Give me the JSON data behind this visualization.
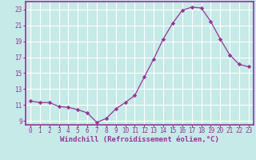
{
  "x": [
    0,
    1,
    2,
    3,
    4,
    5,
    6,
    7,
    8,
    9,
    10,
    11,
    12,
    13,
    14,
    15,
    16,
    17,
    18,
    19,
    20,
    21,
    22,
    23
  ],
  "y": [
    11.5,
    11.3,
    11.3,
    10.8,
    10.7,
    10.4,
    10.0,
    8.8,
    9.3,
    10.5,
    11.3,
    12.2,
    14.5,
    16.8,
    19.3,
    21.3,
    22.9,
    23.3,
    23.2,
    21.5,
    19.3,
    17.3,
    16.1,
    15.8
  ],
  "line_color": "#993399",
  "marker": "D",
  "marker_size": 2.2,
  "bg_color": "#c5eae7",
  "grid_color": "#ffffff",
  "axis_color": "#993399",
  "xlabel": "Windchill (Refroidissement éolien,°C)",
  "xlim": [
    -0.5,
    23.5
  ],
  "ylim": [
    8.5,
    24.0
  ],
  "yticks": [
    9,
    11,
    13,
    15,
    17,
    19,
    21,
    23
  ],
  "xticks": [
    0,
    1,
    2,
    3,
    4,
    5,
    6,
    7,
    8,
    9,
    10,
    11,
    12,
    13,
    14,
    15,
    16,
    17,
    18,
    19,
    20,
    21,
    22,
    23
  ],
  "tick_fontsize": 5.5,
  "label_fontsize": 6.5,
  "linewidth": 0.9,
  "spine_linewidth": 1.2
}
